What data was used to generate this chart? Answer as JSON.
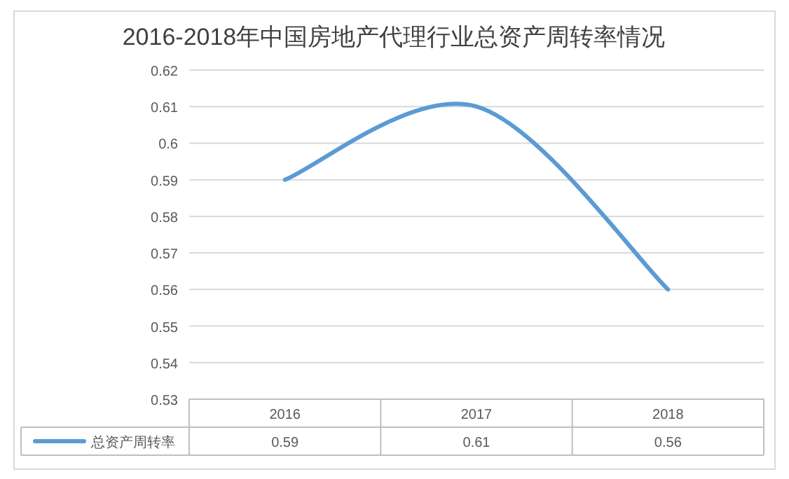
{
  "chart_data": {
    "type": "line",
    "title": "2016-2018年中国房地产代理行业总资产周转率情况",
    "categories": [
      "2016",
      "2017",
      "2018"
    ],
    "series": [
      {
        "name": "总资产周转率",
        "color": "#5b9bd5",
        "values": [
          0.59,
          0.61,
          0.56
        ]
      }
    ],
    "ylim": [
      0.53,
      0.62
    ],
    "yticks": [
      0.53,
      0.54,
      0.55,
      0.56,
      0.57,
      0.58,
      0.59,
      0.6,
      0.61,
      0.62
    ],
    "grid": "y",
    "data_labels": true,
    "legend": "bottom",
    "marker": "none",
    "line_style": "solid"
  }
}
